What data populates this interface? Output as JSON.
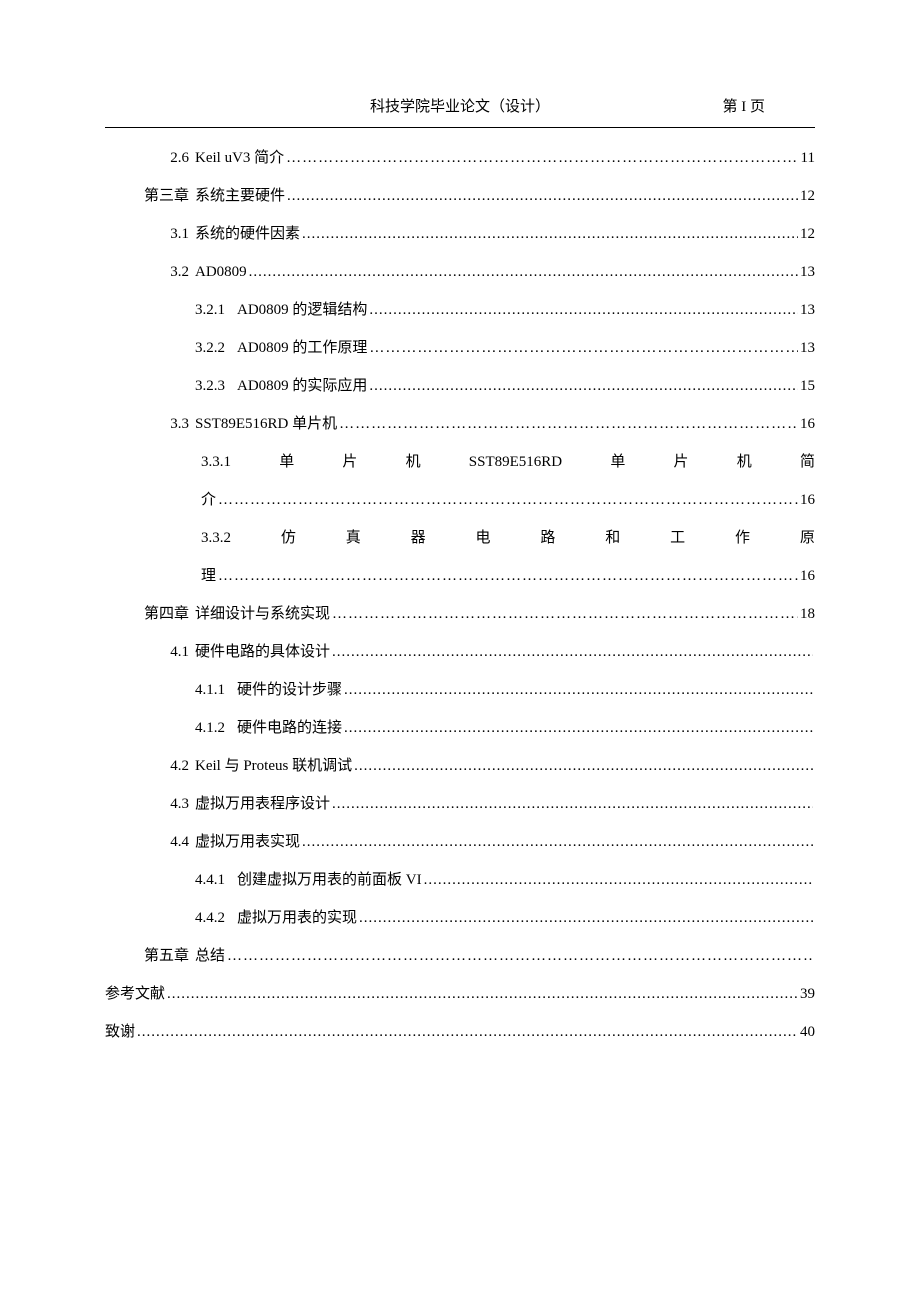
{
  "header": {
    "title": "科技学院毕业论文（设计）",
    "page_label": "第 I 页"
  },
  "toc": [
    {
      "type": "l2",
      "num": "2.6",
      "title": "Keil uV3  简介",
      "leader": "…",
      "page": "11"
    },
    {
      "type": "l1",
      "num": "第三章",
      "title": "系统主要硬件",
      "leader": ".",
      "page": "12"
    },
    {
      "type": "l2",
      "num": "3.1",
      "title": "系统的硬件因素",
      "leader": ".",
      "page": "12"
    },
    {
      "type": "l2",
      "num": "3.2",
      "title": "AD0809",
      "leader": ".",
      "page": "13"
    },
    {
      "type": "l3",
      "num": "3.2.1",
      "title": "AD0809 的逻辑结构",
      "leader": ".",
      "page": "13"
    },
    {
      "type": "l3",
      "num": "3.2.2",
      "title": "AD0809 的工作原理",
      "leader": "…",
      "page": "13"
    },
    {
      "type": "l3",
      "num": "3.2.3",
      "title": "AD0809 的实际应用",
      "leader": ".",
      "page": "15"
    },
    {
      "type": "l2",
      "num": "3.3",
      "title": "SST89E516RD 单片机",
      "leader": "…",
      "page": "16"
    },
    {
      "type": "justify",
      "parts": [
        "3.3.1",
        "单",
        "片",
        "机",
        "SST89E516RD",
        "单",
        "片",
        "机",
        "简"
      ]
    },
    {
      "type": "cont",
      "title": "介",
      "leader": "…",
      "page": "16"
    },
    {
      "type": "justify",
      "parts": [
        "3.3.2",
        "仿",
        "真",
        "器",
        "电",
        "路",
        "和",
        "工",
        "作",
        "原"
      ]
    },
    {
      "type": "cont",
      "title": "理",
      "leader": "…",
      "page": "16"
    },
    {
      "type": "l1",
      "num": "第四章",
      "title": "详细设计与系统实现",
      "leader": "…",
      "page": "18"
    },
    {
      "type": "l2",
      "num": "4.1",
      "title": "硬件电路的具体设计 ",
      "leader": ".",
      "page": ""
    },
    {
      "type": "l3",
      "num": "4.1.1",
      "title": "硬件的设计步骤",
      "leader": ".",
      "page": ""
    },
    {
      "type": "l3",
      "num": "4.1.2",
      "title": "硬件电路的连接",
      "leader": ".",
      "page": ""
    },
    {
      "type": "l2",
      "num": "4.2",
      "title": "Keil 与 Proteus 联机调试",
      "leader": ".",
      "page": ""
    },
    {
      "type": "l2",
      "num": "4.3",
      "title": "虚拟万用表程序设计 ",
      "leader": ".",
      "page": ""
    },
    {
      "type": "l2",
      "num": "4.4",
      "title": "虚拟万用表实现 ",
      "leader": ".",
      "page": ""
    },
    {
      "type": "l3",
      "num": "4.4.1",
      "title": "创建虚拟万用表的前面板 VI ",
      "leader": ".",
      "page": ""
    },
    {
      "type": "l3",
      "num": "4.4.2",
      "title": "虚拟万用表的实现 ",
      "leader": ".",
      "page": ""
    },
    {
      "type": "l1",
      "num": "第五章",
      "title": "总结",
      "leader": "…",
      "page": ""
    },
    {
      "type": "flat",
      "title": "参考文献",
      "leader": ".",
      "page": "39"
    },
    {
      "type": "flat",
      "title": "致谢",
      "leader": ".",
      "page": "40"
    }
  ]
}
